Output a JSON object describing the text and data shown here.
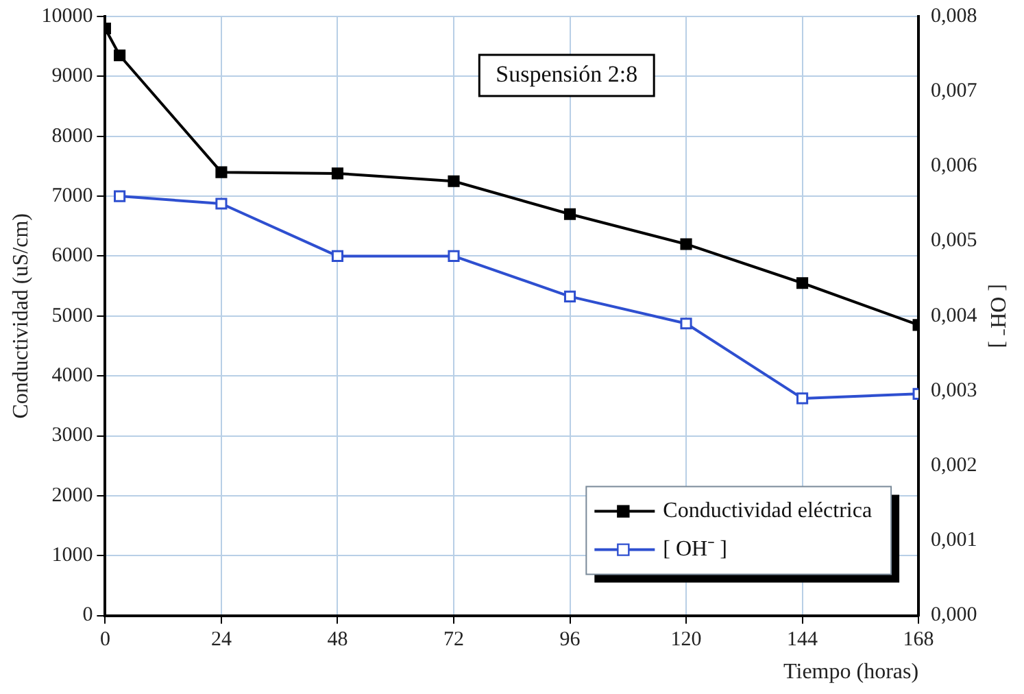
{
  "chart_data": {
    "type": "line",
    "annotations": [
      "Suspensión 2:8"
    ],
    "xlabel": "Tiempo (horas)",
    "ylabel": "Conductividad (uS/cm)",
    "y2label": "[ OH⁻ ]",
    "xlim": [
      0,
      168
    ],
    "xticks": [
      0,
      24,
      48,
      72,
      96,
      120,
      144,
      168
    ],
    "ylim": [
      0,
      10000
    ],
    "yticks": [
      0,
      1000,
      2000,
      3000,
      4000,
      5000,
      6000,
      7000,
      8000,
      9000,
      10000
    ],
    "y2lim": [
      0,
      0.008
    ],
    "y2ticks": [
      {
        "value": 0,
        "label": "0,000"
      },
      {
        "value": 0.001,
        "label": "0,001"
      },
      {
        "value": 0.002,
        "label": "0,002"
      },
      {
        "value": 0.003,
        "label": "0,003"
      },
      {
        "value": 0.004,
        "label": "0,004"
      },
      {
        "value": 0.005,
        "label": "0,005"
      },
      {
        "value": 0.006,
        "label": "0,006"
      },
      {
        "value": 0.007,
        "label": "0,007"
      },
      {
        "value": 0.008,
        "label": "0,008"
      }
    ],
    "grid": true,
    "legend": "bottom right",
    "line_style": "solid",
    "series": [
      {
        "name": "Conductividad eléctrica",
        "color": "#000000",
        "marker": "square",
        "x": [
          0,
          3,
          24,
          48,
          72,
          96,
          120,
          144,
          168
        ],
        "values": [
          9800,
          9350,
          7400,
          7380,
          7250,
          6700,
          6200,
          5550,
          4850
        ]
      },
      {
        "name": "[ OH⁻ ]",
        "color": "#2e4fd0",
        "marker": "square",
        "axis": "y2",
        "x": [
          3,
          24,
          48,
          72,
          96,
          120,
          144,
          168
        ],
        "values": [
          0.0056,
          0.0055,
          0.0048,
          0.0048,
          0.00426,
          0.0039,
          0.0029,
          0.00296
        ]
      }
    ]
  }
}
